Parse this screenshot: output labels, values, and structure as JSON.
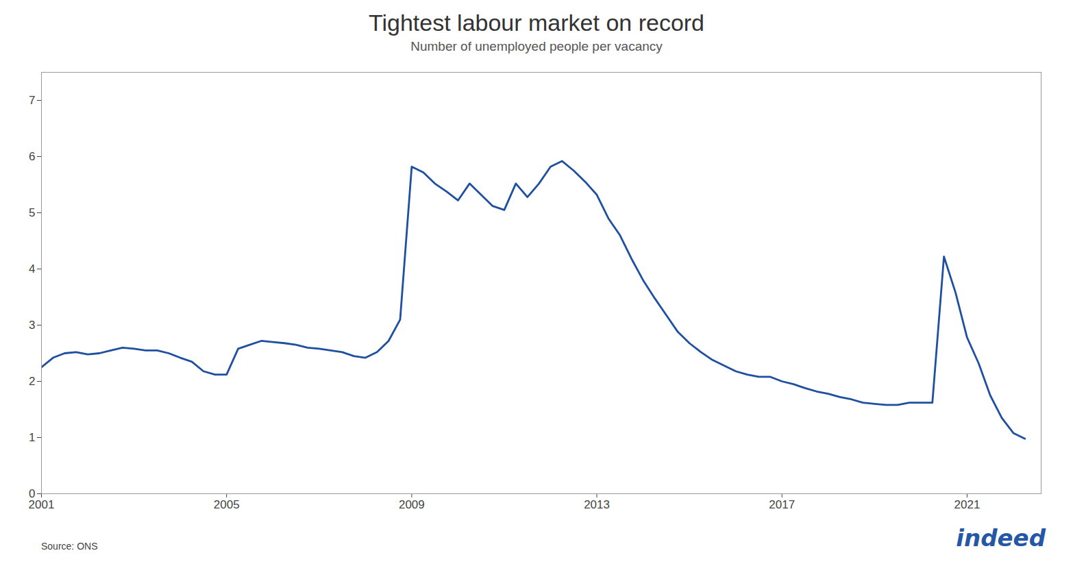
{
  "chart_data": {
    "type": "line",
    "title": "Tightest labour market on record",
    "subtitle": "Number of unemployed people per vacancy",
    "source": "Source: ONS",
    "annotations": [
      {
        "text": "indeed",
        "color": "#2557a7"
      }
    ],
    "color": "#1e4fa0",
    "grid": false,
    "xlim": [
      2001,
      2022.6
    ],
    "xticks": [
      2001,
      2005,
      2009,
      2013,
      2017,
      2021
    ],
    "ylim": [
      0,
      7.5
    ],
    "yticks": [
      0,
      1,
      2,
      3,
      4,
      5,
      6,
      7
    ],
    "x": [
      2001.0,
      2001.25,
      2001.5,
      2001.75,
      2002.0,
      2002.25,
      2002.5,
      2002.75,
      2003.0,
      2003.25,
      2003.5,
      2003.75,
      2004.0,
      2004.25,
      2004.5,
      2004.75,
      2005.0,
      2005.25,
      2005.5,
      2005.75,
      2006.0,
      2006.25,
      2006.5,
      2006.75,
      2007.0,
      2007.25,
      2007.5,
      2007.75,
      2008.0,
      2008.25,
      2008.5,
      2008.75,
      2009.0,
      2009.25,
      2009.5,
      2009.75,
      2010.0,
      2010.25,
      2010.5,
      2010.75,
      2011.0,
      2011.25,
      2011.5,
      2011.75,
      2012.0,
      2012.25,
      2012.5,
      2012.75,
      2013.0,
      2013.25,
      2013.5,
      2013.75,
      2014.0,
      2014.25,
      2014.5,
      2014.75,
      2015.0,
      2015.25,
      2015.5,
      2015.75,
      2016.0,
      2016.25,
      2016.5,
      2016.75,
      2017.0,
      2017.25,
      2017.5,
      2017.75,
      2018.0,
      2018.25,
      2018.5,
      2018.75,
      2019.0,
      2019.25,
      2019.5,
      2019.75,
      2020.0,
      2020.25,
      2020.5,
      2020.75,
      2021.0,
      2021.25,
      2021.5,
      2021.75,
      2022.0,
      2022.25
    ],
    "values": [
      2.25,
      2.42,
      2.5,
      2.52,
      2.48,
      2.5,
      2.55,
      2.6,
      2.58,
      2.55,
      2.55,
      2.5,
      2.42,
      2.35,
      2.18,
      2.12,
      2.12,
      2.58,
      2.65,
      2.72,
      2.7,
      2.68,
      2.65,
      2.6,
      2.58,
      2.55,
      2.52,
      2.45,
      2.42,
      2.52,
      2.72,
      3.1,
      5.82,
      5.72,
      5.52,
      5.38,
      5.22,
      5.52,
      5.32,
      5.12,
      5.05,
      5.52,
      5.28,
      5.52,
      5.82,
      5.92,
      5.75,
      5.55,
      5.32,
      4.9,
      4.6,
      4.18,
      3.8,
      3.48,
      3.18,
      2.88,
      2.68,
      2.52,
      2.38,
      2.28,
      2.18,
      2.12,
      2.08,
      2.08,
      2.0,
      1.95,
      1.88,
      1.82,
      1.78,
      1.72,
      1.68,
      1.62,
      1.6,
      1.58,
      1.58,
      1.62,
      1.62,
      1.62,
      4.22,
      3.58,
      2.78,
      2.32,
      1.75,
      1.35,
      1.08,
      0.98
    ]
  }
}
